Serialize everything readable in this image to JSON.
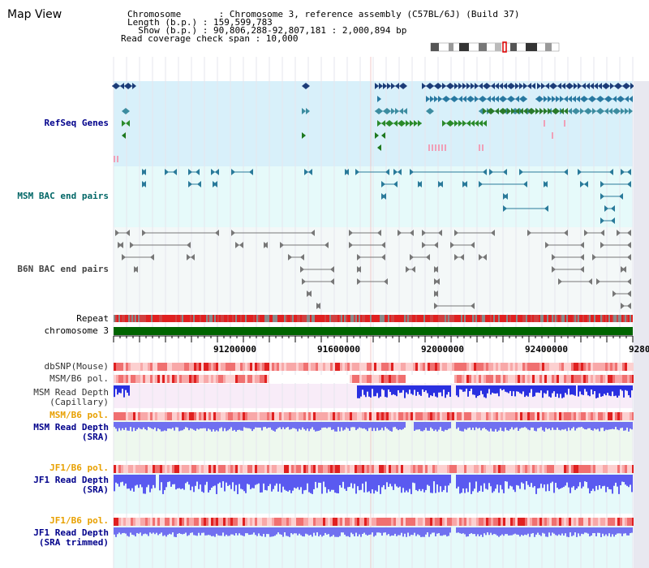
{
  "page": {
    "title": "Map View"
  },
  "info": {
    "chromosome_line": "Chromosome       : Chromosome 3, reference assembly (C57BL/6J) (Build 37)",
    "length_line": "Length (b.p.) : 159,599,783",
    "show_line": "  Show (b.p.) : 90,806,288-92,807,181 : 2,000,894 bp",
    "coverage_line": "Read coverage check span : 10,000"
  },
  "tracks": {
    "refseq": "RefSeq Genes",
    "msm_bac": "MSM BAC end pairs",
    "b6n_bac": "B6N BAC end pairs",
    "repeat": "Repeat",
    "chromosome": "chromosome 3",
    "dbsnp": "dbSNP(Mouse)",
    "msm_b6_pol_1": "MSM/B6 pol.",
    "msm_depth_cap_1": "MSM Read Depth",
    "msm_depth_cap_2": "(Capillary)",
    "msm_b6_pol_2": "MSM/B6 pol.",
    "msm_depth_sra_1": "MSM Read Depth",
    "msm_depth_sra_2": "(SRA)",
    "jf1_b6_pol_1": "JF1/B6 pol.",
    "jf1_depth_sra_1": "JF1 Read Depth",
    "jf1_depth_sra_2": "(SRA)",
    "jf1_b6_pol_2": "JF1/B6 pol.",
    "jf1_depth_trim_1": "JF1 Read Depth",
    "jf1_depth_trim_2": "(SRA trimmed)"
  },
  "axis": {
    "ticks": [
      "91200000",
      "91600000",
      "92000000",
      "92400000",
      "9280"
    ]
  },
  "colors": {
    "label_blue": "#00008b",
    "label_teal": "#006666",
    "label_gray": "#444444",
    "label_orange": "#e8a000",
    "refseq_bg": "#d8f0fa",
    "msm_bg": "#e8fafa",
    "b6n_bg": "#f4f8f8",
    "chromosome_bar": "#006400",
    "depth_blue": "#6666ff"
  }
}
